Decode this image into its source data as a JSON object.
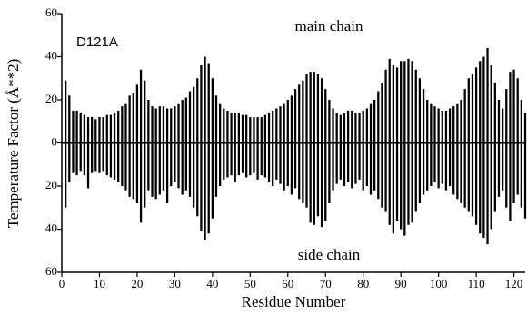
{
  "chart_data": {
    "type": "bar",
    "annotations": [
      "main chain",
      "side chain",
      "D121A"
    ],
    "xlabel": "Residue Number",
    "ylabel": "Temperature Factor (Å**2)",
    "x": [
      1,
      2,
      3,
      4,
      5,
      6,
      7,
      8,
      9,
      10,
      11,
      12,
      13,
      14,
      15,
      16,
      17,
      18,
      19,
      20,
      21,
      22,
      23,
      24,
      25,
      26,
      27,
      28,
      29,
      30,
      31,
      32,
      33,
      34,
      35,
      36,
      37,
      38,
      39,
      40,
      41,
      42,
      43,
      44,
      45,
      46,
      47,
      48,
      49,
      50,
      51,
      52,
      53,
      54,
      55,
      56,
      57,
      58,
      59,
      60,
      61,
      62,
      63,
      64,
      65,
      66,
      67,
      68,
      69,
      70,
      71,
      72,
      73,
      74,
      75,
      76,
      77,
      78,
      79,
      80,
      81,
      82,
      83,
      84,
      85,
      86,
      87,
      88,
      89,
      90,
      91,
      92,
      93,
      94,
      95,
      96,
      97,
      98,
      99,
      100,
      101,
      102,
      103,
      104,
      105,
      106,
      107,
      108,
      109,
      110,
      111,
      112,
      113,
      114,
      115,
      116,
      117,
      118,
      119,
      120,
      121,
      122,
      123
    ],
    "series": [
      {
        "name": "main chain",
        "color": "#000000",
        "values": [
          29,
          22,
          15,
          15,
          14,
          13,
          12,
          12,
          11,
          12,
          12,
          13,
          13,
          14,
          15,
          17,
          18,
          22,
          23,
          27,
          34,
          29,
          20,
          17,
          16,
          17,
          17,
          16,
          16,
          17,
          18,
          20,
          21,
          24,
          26,
          30,
          36,
          40,
          37,
          30,
          22,
          18,
          16,
          15,
          14,
          14,
          14,
          13,
          13,
          12,
          12,
          12,
          12,
          13,
          14,
          15,
          16,
          17,
          18,
          20,
          22,
          25,
          27,
          29,
          32,
          33,
          33,
          32,
          30,
          25,
          20,
          16,
          14,
          13,
          14,
          15,
          15,
          14,
          14,
          15,
          16,
          18,
          20,
          24,
          28,
          34,
          39,
          36,
          35,
          38,
          38,
          39,
          38,
          34,
          30,
          25,
          20,
          18,
          17,
          16,
          15,
          15,
          16,
          17,
          18,
          20,
          25,
          30,
          32,
          35,
          38,
          40,
          44,
          36,
          28,
          20,
          16,
          25,
          33,
          34,
          30,
          20,
          14
        ]
      },
      {
        "name": "side chain",
        "color": "#000000",
        "values": [
          -30,
          -18,
          -14,
          -15,
          -13,
          -15,
          -21,
          -14,
          -13,
          -14,
          -13,
          -15,
          -16,
          -17,
          -18,
          -20,
          -22,
          -25,
          -26,
          -28,
          -37,
          -30,
          -22,
          -25,
          -26,
          -24,
          -22,
          -28,
          -20,
          -18,
          -21,
          -24,
          -22,
          -25,
          -30,
          -34,
          -41,
          -45,
          -42,
          -35,
          -25,
          -20,
          -17,
          -16,
          -15,
          -18,
          -15,
          -14,
          -16,
          -15,
          -14,
          -17,
          -15,
          -16,
          -18,
          -20,
          -17,
          -19,
          -22,
          -20,
          -24,
          -21,
          -26,
          -28,
          -30,
          -37,
          -38,
          -34,
          -39,
          -36,
          -28,
          -22,
          -19,
          -17,
          -20,
          -18,
          -21,
          -19,
          -17,
          -22,
          -20,
          -24,
          -22,
          -26,
          -30,
          -32,
          -38,
          -42,
          -36,
          -40,
          -43,
          -38,
          -37,
          -32,
          -28,
          -24,
          -22,
          -20,
          -18,
          -21,
          -19,
          -22,
          -20,
          -24,
          -26,
          -28,
          -30,
          -32,
          -34,
          -38,
          -42,
          -44,
          -47,
          -40,
          -32,
          -25,
          -22,
          -30,
          -36,
          -28,
          -24,
          -30,
          -35
        ]
      }
    ],
    "xlim": [
      0,
      123
    ],
    "xticks": [
      0,
      10,
      20,
      30,
      40,
      50,
      60,
      70,
      80,
      90,
      100,
      110,
      120
    ],
    "ylim": [
      -60,
      60
    ],
    "yticks": [
      {
        "value": -60,
        "label": "60"
      },
      {
        "value": -40,
        "label": "40"
      },
      {
        "value": -20,
        "label": "20"
      },
      0,
      20,
      40,
      60
    ]
  }
}
